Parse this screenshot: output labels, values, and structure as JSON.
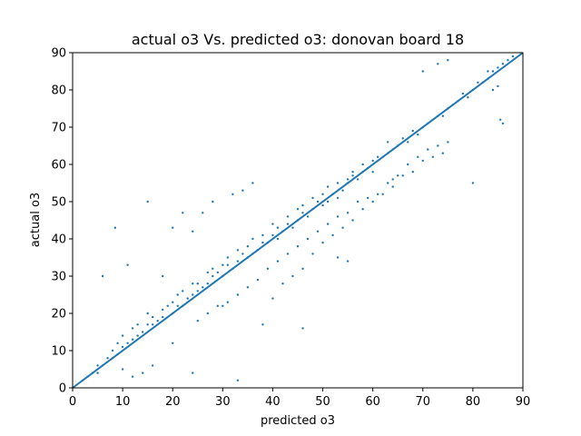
{
  "chart_data": {
    "type": "scatter",
    "title": "actual o3 Vs. predicted o3: donovan board 18",
    "xlabel": "predicted o3",
    "ylabel": "actual o3",
    "xlim": [
      0,
      90
    ],
    "ylim": [
      0,
      90
    ],
    "xticks": [
      0,
      10,
      20,
      30,
      40,
      50,
      60,
      70,
      80,
      90
    ],
    "yticks": [
      0,
      10,
      20,
      30,
      40,
      50,
      60,
      70,
      80,
      90
    ],
    "grid": false,
    "color": "#1f77b4",
    "series": [
      {
        "kind": "points",
        "x": [
          2,
          3,
          4,
          5,
          5,
          6,
          7,
          8,
          8,
          9,
          9,
          10,
          10,
          11,
          12,
          12,
          13,
          13,
          14,
          15,
          15,
          16,
          16,
          17,
          18,
          18,
          19,
          20,
          20,
          21,
          21,
          22,
          22,
          23,
          24,
          24,
          25,
          25,
          26,
          27,
          27,
          28,
          28,
          29,
          30,
          30,
          31,
          31,
          32,
          33,
          33,
          34,
          35,
          35,
          36,
          36,
          37,
          38,
          38,
          39,
          40,
          40,
          41,
          41,
          42,
          43,
          43,
          44,
          45,
          45,
          46,
          46,
          47,
          48,
          48,
          49,
          50,
          50,
          51,
          51,
          52,
          53,
          53,
          54,
          55,
          55,
          56,
          56,
          57,
          58,
          58,
          59,
          60,
          60,
          61,
          62,
          63,
          63,
          64,
          65,
          66,
          67,
          68,
          69,
          70,
          71,
          72,
          73,
          74,
          75,
          76,
          77,
          78,
          79,
          80,
          81,
          82,
          83,
          84,
          85,
          86,
          87,
          88,
          6,
          8.5,
          11,
          15,
          20,
          22,
          24,
          18,
          26,
          28,
          32,
          34,
          36,
          30,
          40,
          42,
          44,
          46,
          38,
          48,
          50,
          52,
          54,
          56,
          58,
          60,
          62,
          64,
          66,
          68,
          70,
          72,
          74,
          10,
          12,
          14,
          16,
          25,
          27,
          29,
          31,
          33,
          35,
          37,
          39,
          41,
          43,
          45,
          47,
          49,
          51,
          53,
          55,
          57,
          59,
          61,
          63,
          65,
          67,
          69,
          71,
          73,
          75,
          33,
          20,
          24,
          46,
          53,
          55,
          64,
          70,
          73,
          75,
          80,
          84,
          85.5,
          86,
          85,
          83
        ],
        "y": [
          2,
          3,
          4,
          4,
          6,
          6,
          8,
          8,
          10,
          9,
          12,
          11,
          14,
          12,
          13,
          16,
          14,
          17,
          15,
          17,
          20,
          17,
          19,
          18,
          21,
          19,
          22,
          20,
          23,
          22,
          25,
          22,
          26,
          24,
          25,
          28,
          26,
          28,
          27,
          28,
          31,
          30,
          32,
          31,
          30,
          33,
          33,
          35,
          32,
          34,
          37,
          36,
          35,
          38,
          36,
          40,
          37,
          39,
          41,
          39,
          41,
          44,
          40,
          43,
          42,
          44,
          46,
          43,
          45,
          48,
          47,
          49,
          46,
          48,
          51,
          50,
          49,
          52,
          50,
          54,
          52,
          55,
          51,
          53,
          56,
          55,
          57,
          58,
          56,
          60,
          58,
          59,
          61,
          58,
          62,
          62,
          63,
          66,
          64,
          65,
          67,
          66,
          69,
          68,
          70,
          71,
          72,
          73,
          73,
          75,
          76,
          77,
          79,
          78,
          80,
          82,
          82,
          83,
          85,
          86,
          87,
          88,
          89,
          30,
          43,
          33,
          50,
          43,
          47,
          42,
          30,
          47,
          50,
          52,
          53,
          55,
          22,
          24,
          28,
          30,
          32,
          17,
          36,
          39,
          41,
          43,
          45,
          48,
          50,
          52,
          54,
          57,
          58,
          61,
          62,
          63,
          5,
          3,
          4,
          6,
          18,
          20,
          22,
          23,
          25,
          27,
          29,
          32,
          34,
          36,
          38,
          40,
          42,
          44,
          46,
          47,
          50,
          51,
          52,
          55,
          57,
          60,
          62,
          64,
          65,
          66,
          2,
          12,
          4,
          16,
          35,
          34,
          56,
          85,
          87,
          88,
          55,
          80,
          72,
          71,
          81,
          85
        ]
      },
      {
        "kind": "line",
        "x": [
          0,
          90
        ],
        "y": [
          0,
          90
        ]
      }
    ]
  }
}
